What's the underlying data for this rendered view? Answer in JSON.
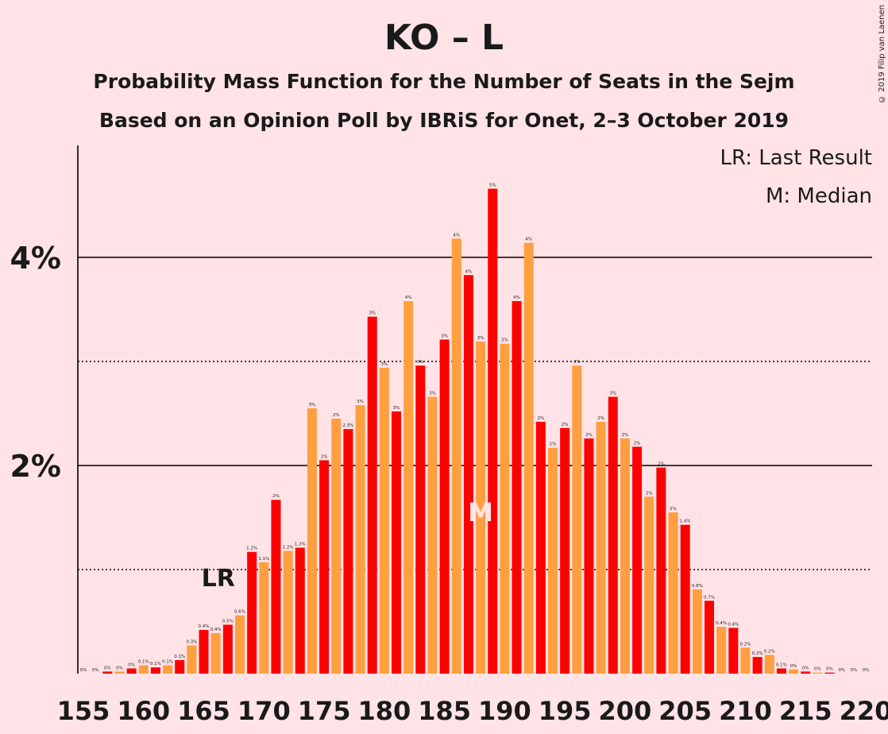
{
  "header": {
    "title": "KO – L",
    "subtitle1": "Probability Mass Function for the Number of Seats in the Sejm",
    "subtitle2": "Based on an Opinion Poll by IBRiS for Onet, 2–3 October 2019",
    "copyright": "© 2019 Filip van Laenen"
  },
  "legend": {
    "lr": "LR: Last Result",
    "m": "M: Median"
  },
  "colors": {
    "background": "#ffe3e6",
    "bar_red": "#ff0000",
    "bar_orange": "#ff9f40",
    "median_mark": "#ffe3e6"
  },
  "chart_data": {
    "type": "bar",
    "x": [
      155,
      156,
      157,
      158,
      159,
      160,
      161,
      162,
      163,
      164,
      165,
      166,
      167,
      168,
      169,
      170,
      171,
      172,
      173,
      174,
      175,
      176,
      177,
      178,
      179,
      180,
      181,
      182,
      183,
      184,
      185,
      186,
      187,
      188,
      189,
      190,
      191,
      192,
      193,
      194,
      195,
      196,
      197,
      198,
      199,
      200,
      201,
      202,
      203,
      204,
      205,
      206,
      207,
      208,
      209,
      210,
      211,
      212,
      213,
      214,
      215,
      216,
      217,
      218,
      219,
      220
    ],
    "values": [
      0,
      0,
      0.02,
      0.02,
      0.05,
      0.08,
      0.06,
      0.08,
      0.13,
      0.27,
      0.42,
      0.39,
      0.47,
      0.56,
      1.17,
      1.07,
      1.67,
      1.18,
      1.21,
      2.55,
      2.05,
      2.45,
      2.35,
      2.58,
      3.43,
      2.94,
      2.52,
      3.58,
      2.96,
      2.66,
      3.21,
      4.18,
      3.83,
      3.19,
      4.66,
      3.17,
      3.58,
      4.14,
      2.42,
      2.17,
      2.36,
      2.96,
      2.26,
      2.42,
      2.66,
      2.26,
      2.18,
      1.7,
      1.98,
      1.55,
      1.43,
      0.81,
      0.7,
      0.45,
      0.44,
      0.25,
      0.16,
      0.18,
      0.05,
      0.04,
      0.02,
      0.01,
      0.01,
      0,
      0,
      0
    ],
    "data_labels": [
      "0%",
      "0%",
      "0%",
      "0%",
      "0%",
      "0.1%",
      "0.1%",
      "0.1%",
      "0.1%",
      "0.3%",
      "0.4%",
      "0.4%",
      "0.5%",
      "0.6%",
      "1.2%",
      "1.1%",
      "2%",
      "1.2%",
      "1.2%",
      "3%",
      "2%",
      "2%",
      "2.3%",
      "3%",
      "3%",
      "3%",
      "3%",
      "4%",
      "3%",
      "3%",
      "3%",
      "4%",
      "4%",
      "3%",
      "5%",
      "3%",
      "4%",
      "4%",
      "2%",
      "2%",
      "2%",
      "3%",
      "2%",
      "2%",
      "3%",
      "2%",
      "2%",
      "2%",
      "2%",
      "2%",
      "1.4%",
      "0.8%",
      "0.7%",
      "0.4%",
      "0.4%",
      "0.2%",
      "0.2%",
      "0.2%",
      "0.1%",
      "0%",
      "0%",
      "0%",
      "0%",
      "0%",
      "0%",
      "0%"
    ],
    "x_ticks": [
      "155",
      "160",
      "165",
      "170",
      "175",
      "180",
      "185",
      "190",
      "195",
      "200",
      "205",
      "210",
      "215",
      "220"
    ],
    "y_ticks": [
      "2%",
      "4%"
    ],
    "ylim": [
      0,
      5
    ],
    "major_gridlines": [
      2,
      4
    ],
    "minor_gridlines": [
      1,
      3
    ],
    "last_result": {
      "seat": 166,
      "label": "LR"
    },
    "median": {
      "seat": 188,
      "label": "M"
    }
  }
}
